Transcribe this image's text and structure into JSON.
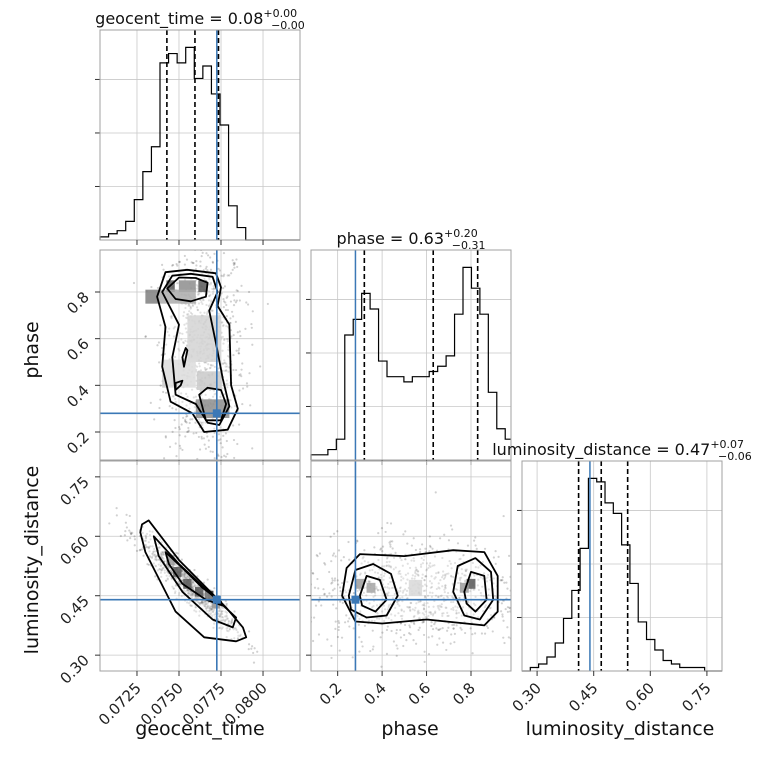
{
  "chart_data": {
    "type": "corner",
    "color_truth": "#3b78b6",
    "color_hist": "#000000",
    "parameters": [
      {
        "name": "geocent_time",
        "range": [
          0.0703,
          0.0822
        ],
        "ticks": [
          0.0725,
          0.075,
          0.0775,
          0.08
        ],
        "tick_labels": [
          "0.0725",
          "0.0750",
          "0.0775",
          "0.0800"
        ],
        "truth": 0.07725,
        "quantiles": [
          0.07428,
          0.07595,
          0.07735
        ],
        "title": {
          "base": "geocent_time = 0.08",
          "upper": "+0.00",
          "lower": "−0.00"
        },
        "hist_edges": [
          0.0703,
          0.07081,
          0.07132,
          0.07183,
          0.07234,
          0.07285,
          0.07336,
          0.07387,
          0.07438,
          0.07489,
          0.0754,
          0.07591,
          0.07642,
          0.07693,
          0.07744,
          0.07795,
          0.07846,
          0.07897,
          0.07948,
          0.07999,
          0.0805,
          0.08101,
          0.08152,
          0.08203,
          0.0822
        ],
        "hist_counts": [
          1,
          2,
          3,
          6,
          13,
          22,
          30,
          57,
          60,
          57,
          62,
          52,
          56,
          47,
          37,
          11,
          4,
          0,
          0,
          0,
          0,
          0,
          0,
          0
        ]
      },
      {
        "name": "phase",
        "range": [
          0.08,
          0.98
        ],
        "ticks": [
          0.2,
          0.4,
          0.6,
          0.8
        ],
        "tick_labels": [
          "0.2",
          "0.4",
          "0.6",
          "0.8"
        ],
        "truth": 0.28,
        "quantiles": [
          0.32,
          0.63,
          0.83
        ],
        "title": {
          "base": "phase = 0.63",
          "upper": "+0.20",
          "lower": "−0.31"
        },
        "hist_edges": [
          0.08,
          0.118,
          0.156,
          0.194,
          0.232,
          0.27,
          0.308,
          0.346,
          0.384,
          0.422,
          0.46,
          0.498,
          0.536,
          0.574,
          0.612,
          0.65,
          0.688,
          0.726,
          0.764,
          0.802,
          0.84,
          0.878,
          0.916,
          0.954,
          0.98
        ],
        "hist_counts": [
          1,
          1,
          2,
          4,
          24,
          27,
          32,
          29,
          19,
          16,
          16,
          15,
          16,
          16,
          17,
          18,
          20,
          28,
          37,
          33,
          28,
          13,
          6,
          4
        ]
      },
      {
        "name": "luminosity_distance",
        "range": [
          0.26,
          0.79
        ],
        "ticks": [
          0.3,
          0.45,
          0.6,
          0.75
        ],
        "tick_labels": [
          "0.30",
          "0.45",
          "0.60",
          "0.75"
        ],
        "truth": 0.44,
        "quantiles": [
          0.41,
          0.47,
          0.54
        ],
        "title": {
          "base": "luminosity_distance = 0.47",
          "upper": "+0.07",
          "lower": "−0.06"
        },
        "hist_edges": [
          0.26,
          0.282,
          0.304,
          0.326,
          0.348,
          0.37,
          0.392,
          0.414,
          0.436,
          0.458,
          0.48,
          0.502,
          0.524,
          0.546,
          0.568,
          0.59,
          0.612,
          0.634,
          0.656,
          0.678,
          0.7,
          0.722,
          0.744,
          0.766,
          0.79
        ],
        "hist_counts": [
          0,
          1,
          2,
          4,
          8,
          15,
          23,
          35,
          55,
          54,
          48,
          45,
          36,
          25,
          14,
          9,
          6,
          3,
          2,
          1,
          1,
          1,
          0,
          0
        ]
      }
    ],
    "panels_2d": [
      {
        "x": "geocent_time",
        "y": "phase",
        "density_cells": [
          {
            "x": 0.0745,
            "y": 0.825,
            "w": 0.0005,
            "h": 0.05,
            "v": 1.0
          },
          {
            "x": 0.0764,
            "y": 0.825,
            "w": 0.0005,
            "h": 0.05,
            "v": 1.0
          },
          {
            "x": 0.0755,
            "y": 0.825,
            "w": 0.001,
            "h": 0.05,
            "v": 0.65
          },
          {
            "x": 0.0745,
            "y": 0.78,
            "w": 0.003,
            "h": 0.06,
            "v": 0.45
          },
          {
            "x": 0.0765,
            "y": 0.6,
            "w": 0.002,
            "h": 0.2,
            "v": 0.18
          },
          {
            "x": 0.077,
            "y": 0.3,
            "w": 0.002,
            "h": 0.08,
            "v": 0.65
          },
          {
            "x": 0.0768,
            "y": 0.42,
            "w": 0.0015,
            "h": 0.08,
            "v": 0.25
          },
          {
            "x": 0.075,
            "y": 0.45,
            "w": 0.002,
            "h": 0.12,
            "v": 0.12
          }
        ],
        "contours": [
          [
            [
              0.0737,
              0.78
            ],
            [
              0.0742,
              0.885
            ],
            [
              0.0755,
              0.895
            ],
            [
              0.0772,
              0.88
            ],
            [
              0.0775,
              0.82
            ],
            [
              0.0773,
              0.74
            ],
            [
              0.078,
              0.66
            ],
            [
              0.0781,
              0.4
            ],
            [
              0.0785,
              0.3
            ],
            [
              0.0779,
              0.21
            ],
            [
              0.0765,
              0.2
            ],
            [
              0.0758,
              0.28
            ],
            [
              0.0745,
              0.33
            ],
            [
              0.074,
              0.48
            ],
            [
              0.0742,
              0.65
            ],
            [
              0.0737,
              0.78
            ]
          ],
          [
            [
              0.074,
              0.8
            ],
            [
              0.0746,
              0.87
            ],
            [
              0.0757,
              0.878
            ],
            [
              0.077,
              0.865
            ],
            [
              0.0773,
              0.8
            ],
            [
              0.0768,
              0.72
            ],
            [
              0.0772,
              0.58
            ],
            [
              0.0776,
              0.43
            ],
            [
              0.078,
              0.31
            ],
            [
              0.0774,
              0.23
            ],
            [
              0.0767,
              0.24
            ],
            [
              0.076,
              0.32
            ],
            [
              0.0748,
              0.36
            ],
            [
              0.0746,
              0.52
            ],
            [
              0.075,
              0.66
            ],
            [
              0.074,
              0.8
            ]
          ],
          [
            [
              0.0743,
              0.815
            ],
            [
              0.075,
              0.862
            ],
            [
              0.076,
              0.86
            ],
            [
              0.0767,
              0.84
            ],
            [
              0.0766,
              0.78
            ],
            [
              0.0757,
              0.76
            ],
            [
              0.0748,
              0.77
            ],
            [
              0.0743,
              0.815
            ]
          ],
          [
            [
              0.0762,
              0.36
            ],
            [
              0.0766,
              0.25
            ],
            [
              0.0775,
              0.25
            ],
            [
              0.0778,
              0.32
            ],
            [
              0.0775,
              0.38
            ],
            [
              0.0767,
              0.39
            ],
            [
              0.0762,
              0.36
            ]
          ],
          [
            [
              0.0748,
              0.38
            ],
            [
              0.0751,
              0.4
            ],
            [
              0.0752,
              0.42
            ],
            [
              0.0748,
              0.41
            ],
            [
              0.0748,
              0.38
            ]
          ],
          [
            [
              0.0753,
              0.48
            ],
            [
              0.0755,
              0.55
            ],
            [
              0.0754,
              0.56
            ],
            [
              0.0752,
              0.52
            ],
            [
              0.0753,
              0.48
            ]
          ]
        ],
        "cloud_center": [
          0.0765,
          0.55
        ],
        "cloud_spread": [
          0.0012,
          0.25
        ]
      },
      {
        "x": "geocent_time",
        "y": "luminosity_distance",
        "density_cells": [
          {
            "x": 0.0745,
            "y": 0.54,
            "w": 0.0005,
            "h": 0.025,
            "v": 0.55
          },
          {
            "x": 0.0749,
            "y": 0.51,
            "w": 0.0005,
            "h": 0.025,
            "v": 1.0
          },
          {
            "x": 0.0755,
            "y": 0.48,
            "w": 0.0005,
            "h": 0.025,
            "v": 1.0
          },
          {
            "x": 0.0762,
            "y": 0.46,
            "w": 0.0005,
            "h": 0.025,
            "v": 1.0
          },
          {
            "x": 0.0768,
            "y": 0.45,
            "w": 0.0005,
            "h": 0.025,
            "v": 0.85
          },
          {
            "x": 0.0772,
            "y": 0.43,
            "w": 0.0005,
            "h": 0.025,
            "v": 0.6
          }
        ],
        "contours": [
          [
            [
              0.0728,
              0.63
            ],
            [
              0.0732,
              0.64
            ],
            [
              0.075,
              0.54
            ],
            [
              0.0778,
              0.42
            ],
            [
              0.0788,
              0.37
            ],
            [
              0.079,
              0.345
            ],
            [
              0.0784,
              0.335
            ],
            [
              0.0765,
              0.345
            ],
            [
              0.0748,
              0.41
            ],
            [
              0.073,
              0.56
            ],
            [
              0.0727,
              0.61
            ],
            [
              0.0728,
              0.63
            ]
          ],
          [
            [
              0.0735,
              0.6
            ],
            [
              0.075,
              0.53
            ],
            [
              0.077,
              0.45
            ],
            [
              0.0784,
              0.395
            ],
            [
              0.0782,
              0.37
            ],
            [
              0.077,
              0.39
            ],
            [
              0.0752,
              0.46
            ],
            [
              0.0738,
              0.55
            ],
            [
              0.0735,
              0.6
            ]
          ],
          [
            [
              0.0742,
              0.56
            ],
            [
              0.0752,
              0.52
            ],
            [
              0.0764,
              0.47
            ],
            [
              0.0775,
              0.435
            ],
            [
              0.0776,
              0.425
            ],
            [
              0.0766,
              0.44
            ],
            [
              0.0752,
              0.48
            ],
            [
              0.0744,
              0.53
            ],
            [
              0.0742,
              0.56
            ]
          ]
        ],
        "cloud_center": [
          0.0755,
          0.48
        ],
        "cloud_spread": [
          0.0014,
          0.08
        ]
      },
      {
        "x": "phase",
        "y": "luminosity_distance",
        "density_cells": [
          {
            "x": 0.3,
            "y": 0.48,
            "w": 0.04,
            "h": 0.025,
            "v": 0.55
          },
          {
            "x": 0.35,
            "y": 0.47,
            "w": 0.04,
            "h": 0.025,
            "v": 0.5
          },
          {
            "x": 0.55,
            "y": 0.47,
            "w": 0.06,
            "h": 0.04,
            "v": 0.15
          },
          {
            "x": 0.8,
            "y": 0.48,
            "w": 0.04,
            "h": 0.025,
            "v": 1.0
          },
          {
            "x": 0.77,
            "y": 0.47,
            "w": 0.04,
            "h": 0.025,
            "v": 0.55
          }
        ],
        "contours": [
          [
            [
              0.22,
              0.45
            ],
            [
              0.24,
              0.52
            ],
            [
              0.3,
              0.555
            ],
            [
              0.5,
              0.55
            ],
            [
              0.72,
              0.565
            ],
            [
              0.86,
              0.56
            ],
            [
              0.92,
              0.5
            ],
            [
              0.92,
              0.41
            ],
            [
              0.86,
              0.375
            ],
            [
              0.6,
              0.39
            ],
            [
              0.4,
              0.38
            ],
            [
              0.28,
              0.385
            ],
            [
              0.22,
              0.45
            ]
          ],
          [
            [
              0.25,
              0.45
            ],
            [
              0.28,
              0.515
            ],
            [
              0.36,
              0.53
            ],
            [
              0.44,
              0.505
            ],
            [
              0.47,
              0.45
            ],
            [
              0.42,
              0.4
            ],
            [
              0.33,
              0.395
            ],
            [
              0.26,
              0.415
            ],
            [
              0.25,
              0.45
            ]
          ],
          [
            [
              0.72,
              0.46
            ],
            [
              0.74,
              0.525
            ],
            [
              0.82,
              0.545
            ],
            [
              0.89,
              0.51
            ],
            [
              0.9,
              0.44
            ],
            [
              0.84,
              0.39
            ],
            [
              0.77,
              0.4
            ],
            [
              0.72,
              0.46
            ]
          ],
          [
            [
              0.3,
              0.45
            ],
            [
              0.33,
              0.5
            ],
            [
              0.39,
              0.49
            ],
            [
              0.42,
              0.44
            ],
            [
              0.37,
              0.41
            ],
            [
              0.31,
              0.425
            ],
            [
              0.3,
              0.45
            ]
          ],
          [
            [
              0.77,
              0.46
            ],
            [
              0.8,
              0.51
            ],
            [
              0.86,
              0.5
            ],
            [
              0.87,
              0.44
            ],
            [
              0.82,
              0.41
            ],
            [
              0.78,
              0.43
            ],
            [
              0.77,
              0.46
            ]
          ]
        ],
        "cloud_center": [
          0.55,
          0.46
        ],
        "cloud_spread": [
          0.25,
          0.07
        ]
      }
    ]
  }
}
